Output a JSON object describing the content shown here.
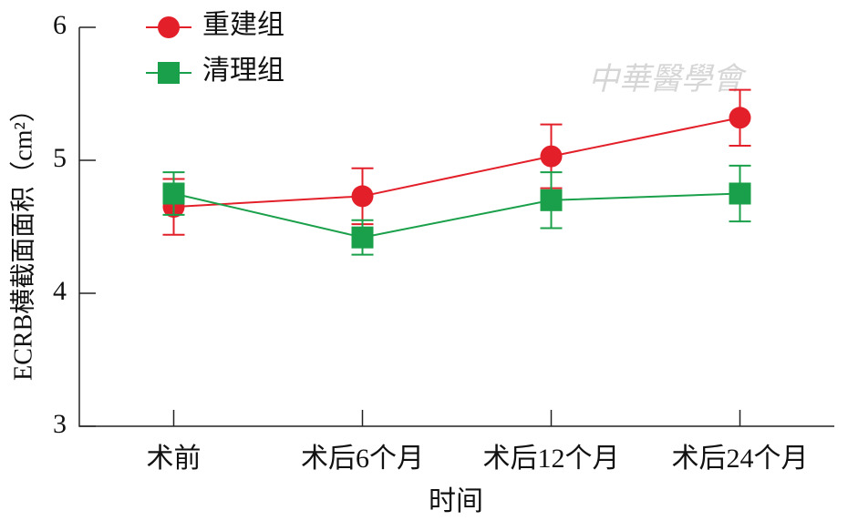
{
  "chart_data": {
    "type": "line",
    "watermark": "中華醫學會",
    "xlabel": "时间",
    "ylabel": "ECRB横截面面积（cm²）",
    "categories": [
      "术前",
      "术后6个月",
      "术后12个月",
      "术后24个月"
    ],
    "series": [
      {
        "name": "重建组",
        "color": "#e3202a",
        "marker": "circle",
        "values": [
          4.65,
          4.73,
          5.03,
          5.32
        ],
        "errors": [
          0.21,
          0.21,
          0.24,
          0.21
        ]
      },
      {
        "name": "清理组",
        "color": "#1aa04a",
        "marker": "square",
        "values": [
          4.75,
          4.42,
          4.7,
          4.75
        ],
        "errors": [
          0.16,
          0.13,
          0.21,
          0.21
        ]
      }
    ],
    "ylim": [
      3,
      6
    ],
    "yticks": [
      3,
      4,
      5,
      6
    ],
    "legend": "upper left"
  }
}
